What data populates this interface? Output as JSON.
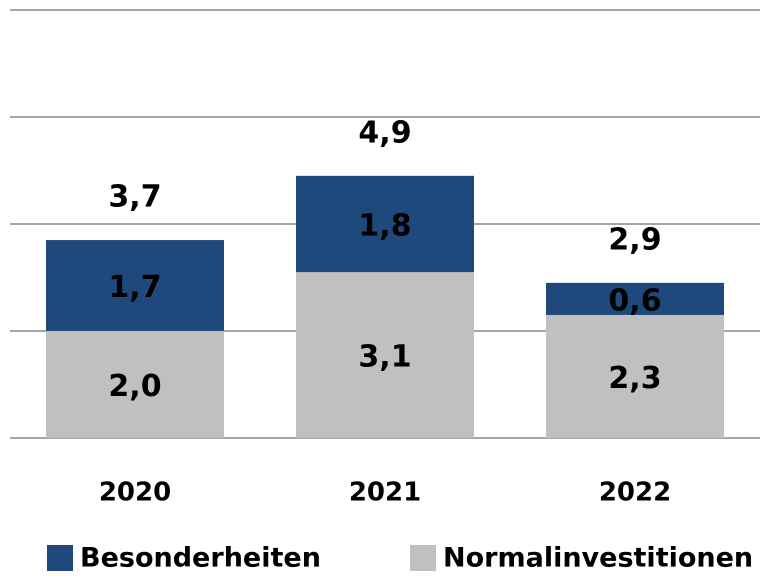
{
  "chart_data": {
    "type": "stacked_bar",
    "categories": [
      "2020",
      "2021",
      "2022"
    ],
    "series": [
      {
        "name": "Normalinvestitionen",
        "color": "#c0c0c0",
        "values": [
          2.0,
          3.1,
          2.3
        ],
        "value_labels": [
          "2,0",
          "3,1",
          "2,3"
        ]
      },
      {
        "name": "Besonderheiten",
        "color": "#1f497d",
        "values": [
          1.7,
          1.8,
          0.6
        ],
        "value_labels": [
          "1,7",
          "1,8",
          "0,6"
        ]
      }
    ],
    "totals": [
      3.7,
      4.9,
      2.9
    ],
    "total_labels": [
      "3,7",
      "4,9",
      "2,9"
    ],
    "ylim": [
      0,
      8
    ],
    "yticks": [
      0,
      2,
      4,
      6,
      8
    ],
    "grid": true,
    "legend": "bottom"
  }
}
